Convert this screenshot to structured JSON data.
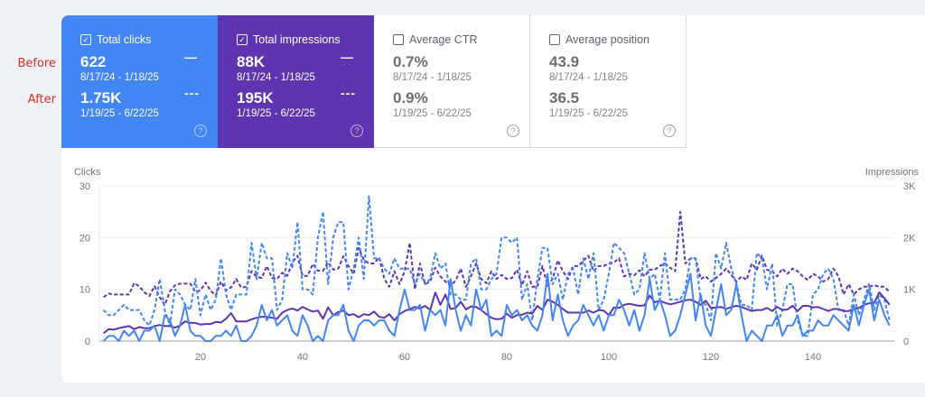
{
  "annotations": {
    "before": "Before",
    "after": "After"
  },
  "colors": {
    "clicks": "#4285f4",
    "impressions": "#5e35b1",
    "before_label": "#d93025"
  },
  "cards": [
    {
      "title": "Total clicks",
      "checked": true,
      "before_value": "622",
      "before_range": "8/17/24 - 1/18/25",
      "after_value": "1.75K",
      "after_range": "1/19/25 - 6/22/25",
      "before_line": "—",
      "after_line": "---",
      "help": "?"
    },
    {
      "title": "Total impressions",
      "checked": true,
      "before_value": "88K",
      "before_range": "8/17/24 - 1/18/25",
      "after_value": "195K",
      "after_range": "1/19/25 - 6/22/25",
      "before_line": "—",
      "after_line": "---",
      "help": "?"
    },
    {
      "title": "Average CTR",
      "checked": false,
      "before_value": "0.7%",
      "before_range": "8/17/24 - 1/18/25",
      "after_value": "0.9%",
      "after_range": "1/19/25 - 6/22/25",
      "help": "?"
    },
    {
      "title": "Average position",
      "checked": false,
      "before_value": "43.9",
      "before_range": "8/17/24 - 1/18/25",
      "after_value": "36.5",
      "after_range": "1/19/25 - 6/22/25",
      "help": "?"
    }
  ],
  "chart_data": {
    "type": "line",
    "ylabel_left": "Clicks",
    "ylabel_right": "Impressions",
    "ylim_left": [
      0,
      30
    ],
    "ylim_right": [
      0,
      3000
    ],
    "yticks_left": [
      "0",
      "10",
      "20",
      "30"
    ],
    "yticks_right": [
      "0",
      "1K",
      "2K",
      "3K"
    ],
    "xlim": [
      1,
      155
    ],
    "xticks": [
      20,
      40,
      60,
      80,
      100,
      120,
      140
    ],
    "grid": true,
    "series": [
      {
        "metric": "clicks",
        "period": "before",
        "style": "solid",
        "axis": "left",
        "color": "#4285f4",
        "values": [
          0,
          1,
          1,
          0,
          2,
          1,
          2,
          0,
          2,
          2,
          3,
          0,
          5,
          4,
          1,
          3,
          7,
          2,
          1,
          1,
          0,
          0,
          1,
          1,
          2,
          1,
          3,
          0,
          0,
          1,
          3,
          7,
          4,
          6,
          3,
          4,
          5,
          2,
          1,
          5,
          3,
          0,
          1,
          0,
          4,
          5,
          5,
          7,
          2,
          0,
          3,
          4,
          4,
          3,
          4,
          4,
          2,
          1,
          6,
          10,
          6,
          6,
          7,
          2,
          6,
          5,
          6,
          3,
          12,
          6,
          2,
          5,
          3,
          10,
          6,
          8,
          1,
          2,
          1,
          7,
          5,
          6,
          4,
          5,
          3,
          2,
          5,
          13,
          4,
          9,
          4,
          1,
          3,
          4,
          7,
          5,
          3,
          5,
          2,
          5,
          5,
          8,
          6,
          3,
          6,
          2,
          5,
          12,
          6,
          8,
          5,
          1,
          2,
          5,
          9,
          13,
          4,
          9,
          3,
          1,
          6,
          11,
          5,
          6,
          11,
          5,
          0,
          2,
          1,
          0,
          3,
          3,
          5,
          1,
          3,
          3,
          5,
          1,
          2,
          2,
          4,
          3,
          3,
          5,
          4,
          3,
          2,
          7,
          3,
          7,
          10,
          4,
          8,
          5,
          3
        ]
      },
      {
        "metric": "clicks",
        "period": "after",
        "style": "dashed",
        "axis": "left",
        "color": "#4285f4",
        "values": [
          6,
          5,
          5,
          6,
          7,
          6,
          6,
          6,
          4,
          3,
          6,
          12,
          6,
          3,
          10,
          9,
          7,
          6,
          12,
          5,
          9,
          6,
          8,
          16,
          9,
          6,
          9,
          9,
          9,
          19,
          12,
          19,
          16,
          16,
          6,
          8,
          17,
          14,
          23,
          10,
          10,
          9,
          20,
          25,
          11,
          20,
          23,
          23,
          10,
          14,
          20,
          12,
          28,
          16,
          16,
          14,
          13,
          16,
          14,
          14,
          14,
          11,
          13,
          11,
          12,
          17,
          14,
          15,
          9,
          9,
          8,
          8,
          15,
          16,
          10,
          10,
          12,
          13,
          20,
          20,
          19,
          20,
          8,
          11,
          4,
          12,
          18,
          18,
          11,
          13,
          8,
          13,
          14,
          9,
          16,
          12,
          17,
          6,
          8,
          13,
          19,
          18,
          17,
          13,
          9,
          10,
          17,
          12,
          13,
          8,
          17,
          8,
          8,
          8,
          10,
          16,
          16,
          8,
          7,
          4,
          17,
          14,
          19,
          14,
          11,
          7,
          7,
          6,
          17,
          16,
          10,
          15,
          3,
          6,
          11,
          11,
          4,
          1,
          1,
          9,
          10,
          13,
          14,
          12,
          6,
          6,
          3,
          9,
          5,
          8,
          11,
          6,
          9,
          8,
          4
        ]
      },
      {
        "metric": "impressions",
        "period": "before",
        "style": "solid",
        "axis": "right",
        "color": "#5e35b1",
        "values": [
          150,
          230,
          220,
          250,
          270,
          290,
          230,
          270,
          250,
          250,
          290,
          310,
          290,
          290,
          260,
          300,
          380,
          350,
          350,
          320,
          330,
          330,
          370,
          360,
          430,
          540,
          380,
          380,
          380,
          420,
          450,
          470,
          470,
          450,
          430,
          550,
          600,
          630,
          590,
          660,
          610,
          570,
          590,
          430,
          650,
          500,
          560,
          590,
          500,
          520,
          460,
          520,
          500,
          570,
          470,
          450,
          520,
          400,
          520,
          580,
          620,
          660,
          630,
          680,
          600,
          940,
          700,
          900,
          620,
          640,
          760,
          610,
          670,
          660,
          600,
          520,
          450,
          420,
          430,
          530,
          450,
          500,
          510,
          550,
          530,
          680,
          600,
          800,
          760,
          700,
          620,
          550,
          550,
          550,
          550,
          590,
          550,
          600,
          590,
          500,
          650,
          640,
          700,
          720,
          700,
          680,
          690,
          880,
          750,
          780,
          740,
          710,
          730,
          760,
          790,
          800,
          760,
          700,
          780,
          640,
          650,
          660,
          620,
          660,
          680,
          660,
          620,
          580,
          600,
          600,
          640,
          580,
          660,
          600,
          610,
          680,
          580,
          680,
          680,
          650,
          660,
          620,
          580,
          620,
          620,
          580,
          580,
          620,
          640,
          700,
          730,
          740,
          940,
          830,
          700
        ]
      },
      {
        "metric": "impressions",
        "period": "after",
        "style": "dashed",
        "axis": "right",
        "color": "#5e35b1",
        "values": [
          850,
          920,
          900,
          900,
          900,
          900,
          1120,
          1060,
          940,
          870,
          1060,
          850,
          700,
          960,
          1080,
          1110,
          1110,
          1110,
          950,
          980,
          1130,
          970,
          880,
          1150,
          980,
          1040,
          1200,
          1030,
          1050,
          1350,
          1240,
          1220,
          1450,
          1220,
          1200,
          1320,
          1260,
          1520,
          1650,
          1260,
          1260,
          1490,
          1360,
          1360,
          1520,
          1380,
          1400,
          1640,
          1450,
          1300,
          1800,
          1570,
          1500,
          1500,
          1620,
          1200,
          1050,
          1350,
          1100,
          1350,
          1900,
          1000,
          1500,
          1100,
          1150,
          1420,
          1250,
          1150,
          1070,
          1170,
          1400,
          1050,
          1250,
          1500,
          1200,
          1120,
          1350,
          1200,
          1280,
          1200,
          1220,
          1380,
          1080,
          1350,
          1050,
          1050,
          1450,
          1070,
          1200,
          1560,
          1350,
          1200,
          1450,
          1450,
          1550,
          1650,
          1350,
          1450,
          1450,
          1500,
          1520,
          1600,
          1250,
          1300,
          1270,
          1370,
          1250,
          1380,
          1380,
          1450,
          1500,
          1420,
          1350,
          2500,
          1500,
          1600,
          1600,
          1200,
          1250,
          1150,
          1220,
          1300,
          1400,
          1280,
          1150,
          1250,
          1180,
          1500,
          1380,
          1650,
          1380,
          1350,
          1250,
          1400,
          1300,
          1400,
          1350,
          1250,
          1180,
          1300,
          1250,
          1150,
          1200,
          1400,
          1250,
          900,
          1100,
          900,
          1000,
          1050,
          1050,
          1080,
          1050,
          1050,
          950
        ]
      }
    ]
  }
}
